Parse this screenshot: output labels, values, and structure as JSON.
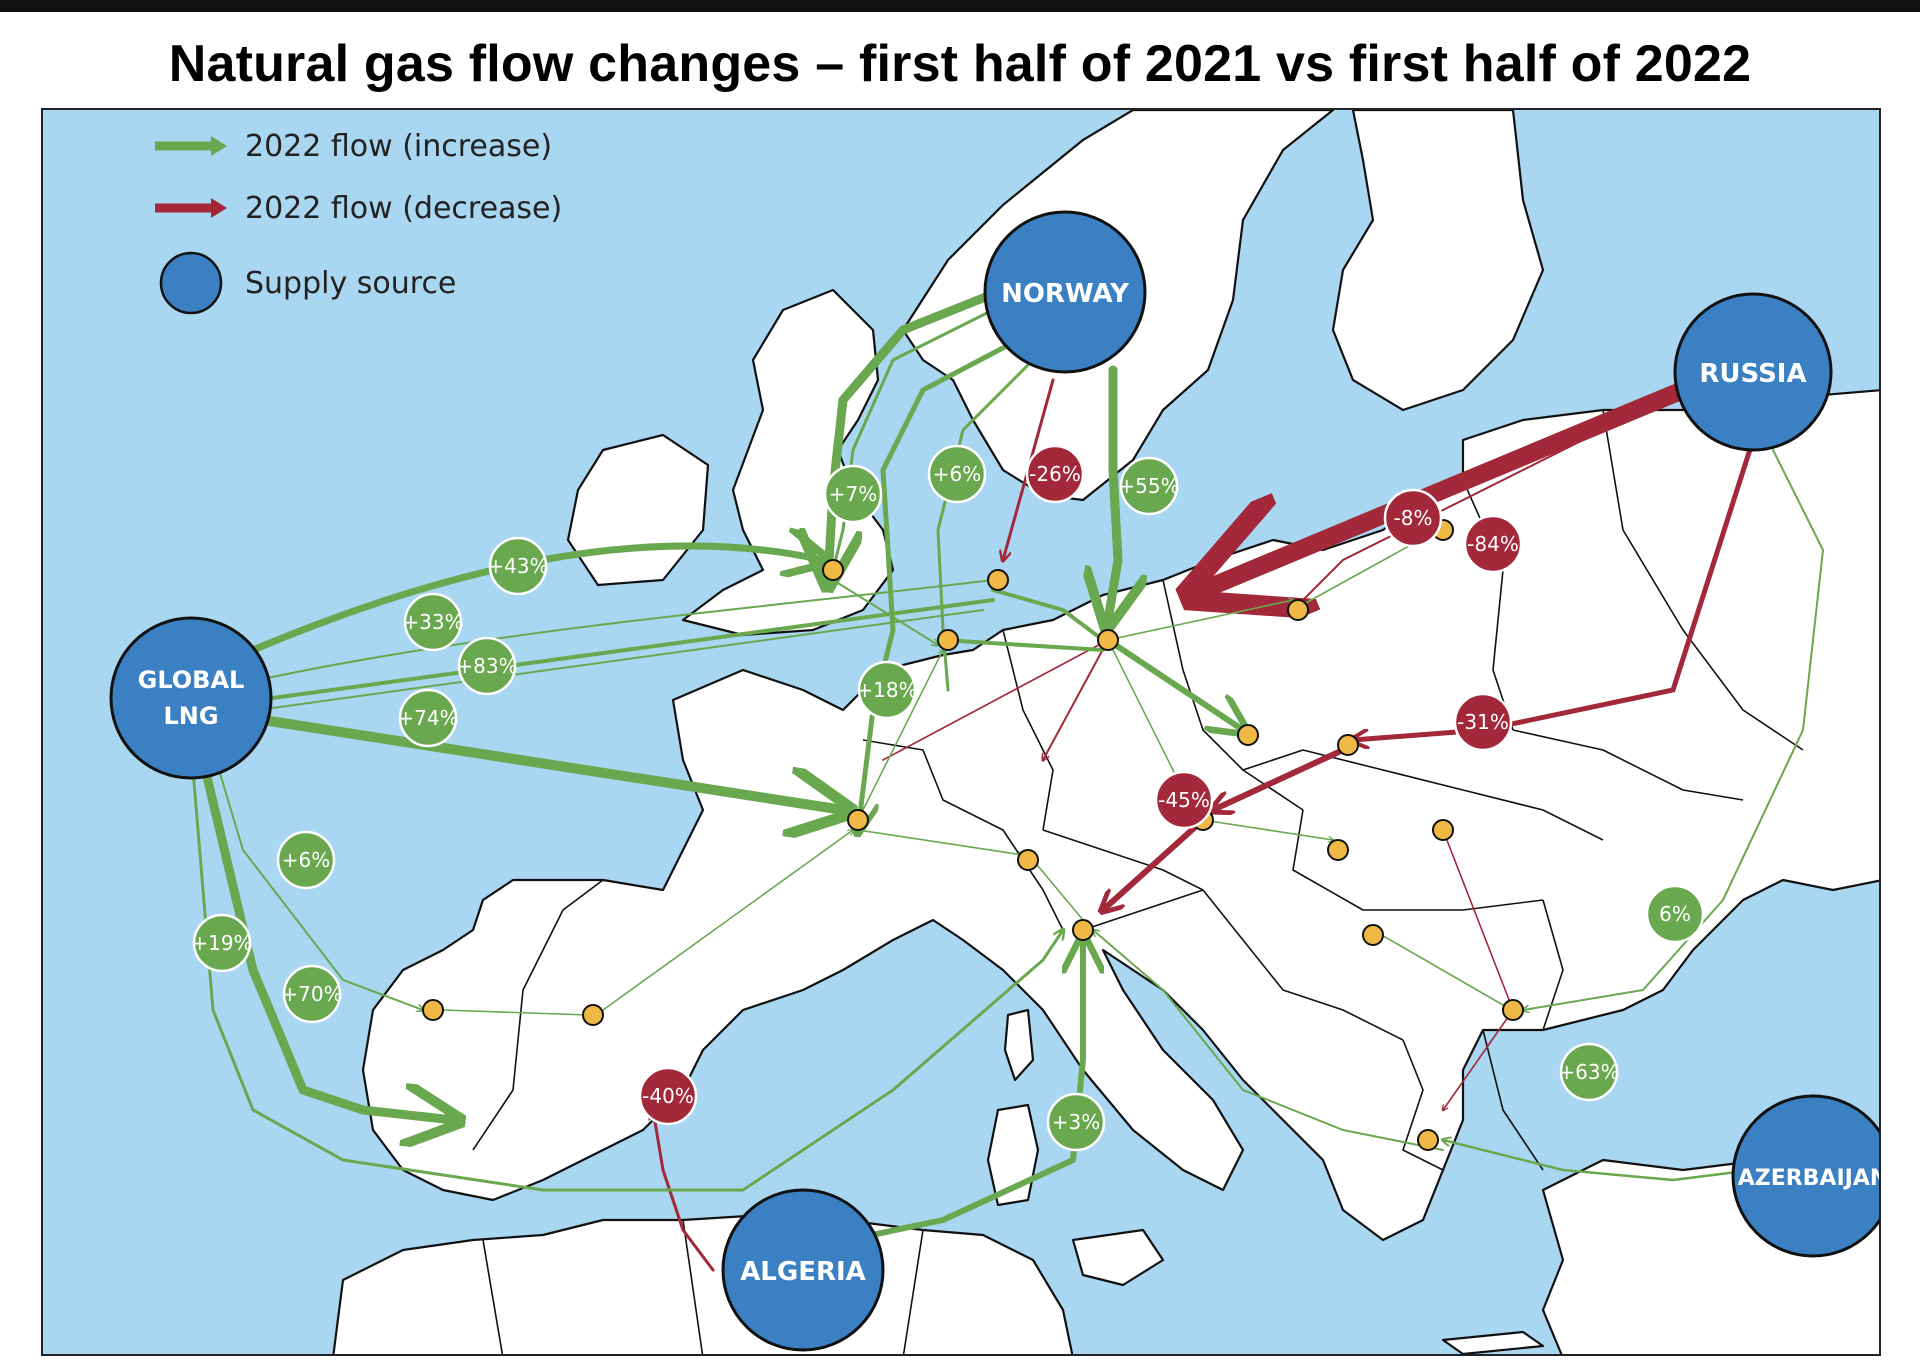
{
  "title": "Natural gas flow changes – first half of 2021 vs first half of 2022",
  "colors": {
    "sea": "#a9d6f0",
    "land": "#ffffff",
    "border": "#111111",
    "increase": "#69a84f",
    "decrease": "#a3283a",
    "supply": "#3a80c3",
    "node": "#f0b946"
  },
  "legend": {
    "increase": "2022 flow (increase)",
    "decrease": "2022 flow (decrease)",
    "supply": "Supply source"
  },
  "sources": {
    "norway": "NORWAY",
    "russia": "RUSSIA",
    "lng_line1": "GLOBAL",
    "lng_line2": "LNG",
    "algeria": "ALGERIA",
    "azerbaijan": "AZERBAIJAN"
  },
  "flows": [
    {
      "label": "+7%",
      "trend": "increase"
    },
    {
      "label": "+6%",
      "trend": "increase"
    },
    {
      "label": "-26%",
      "trend": "decrease"
    },
    {
      "label": "+55%",
      "trend": "increase"
    },
    {
      "label": "-8%",
      "trend": "decrease"
    },
    {
      "label": "-84%",
      "trend": "decrease"
    },
    {
      "label": "+43%",
      "trend": "increase"
    },
    {
      "label": "+33%",
      "trend": "increase"
    },
    {
      "label": "+83%",
      "trend": "increase"
    },
    {
      "label": "+18%",
      "trend": "increase"
    },
    {
      "label": "+74%",
      "trend": "increase"
    },
    {
      "label": "-31%",
      "trend": "decrease"
    },
    {
      "label": "-45%",
      "trend": "decrease"
    },
    {
      "label": "+6%",
      "trend": "increase"
    },
    {
      "label": "+19%",
      "trend": "increase"
    },
    {
      "label": "+70%",
      "trend": "increase"
    },
    {
      "label": "6%",
      "trend": "increase"
    },
    {
      "label": "-40%",
      "trend": "decrease"
    },
    {
      "label": "+3%",
      "trend": "increase"
    },
    {
      "label": "+63%",
      "trend": "increase"
    }
  ]
}
